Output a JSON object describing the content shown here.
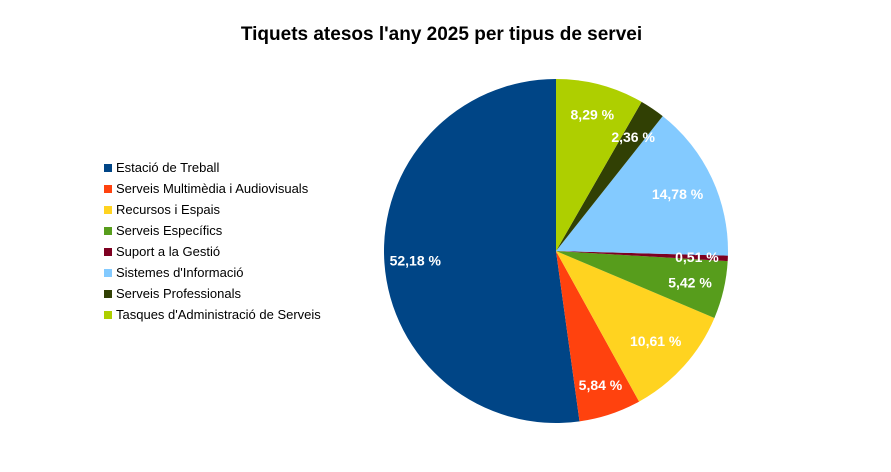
{
  "chart_data": {
    "type": "pie",
    "title": "Tiquets atesos l'any 2025 per tipus de servei",
    "legend_position": "left",
    "start": "top",
    "direction": "counterclockwise",
    "categories": [
      "Estació de Treball",
      "Serveis Multimèdia i Audiovisuals",
      "Recursos i Espais",
      "Serveis Específics",
      "Suport a la Gestió",
      "Sistemes d'Informació",
      "Serveis Professionals",
      "Tasques d'Administració de Serveis"
    ],
    "values": [
      52.18,
      5.84,
      10.61,
      5.42,
      0.51,
      14.78,
      2.36,
      8.29
    ],
    "labels": [
      "52,18 %",
      "5,84 %",
      "10,61 %",
      "5,42 %",
      "0,51 %",
      "14,78 %",
      "2,36 %",
      "8,29 %"
    ],
    "colors": [
      "#004586",
      "#ff420e",
      "#ffd320",
      "#579d1c",
      "#7e0021",
      "#83caff",
      "#314004",
      "#aecf00"
    ]
  }
}
